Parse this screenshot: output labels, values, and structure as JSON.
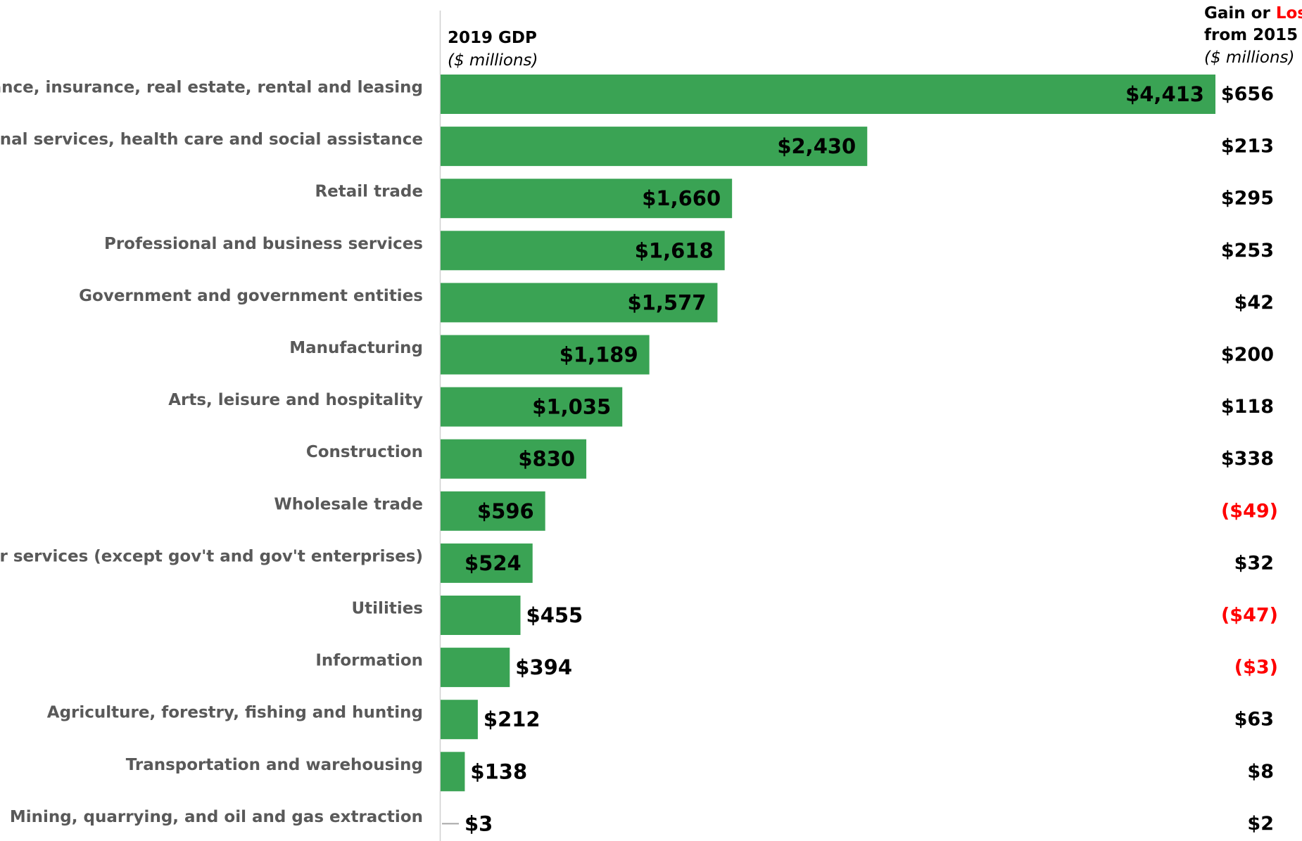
{
  "chart_data": {
    "type": "bar",
    "orientation": "horizontal",
    "bar_color": "#3aa354",
    "gain_color": "#000000",
    "loss_color": "#ff0000",
    "header_gdp": {
      "line1": "2019 GDP",
      "line2": "($ millions)"
    },
    "header_change": {
      "line1_a": "Gain or ",
      "line1_b": "Loss",
      "line2": "from 2015",
      "line3": "($ millions)"
    },
    "categories": [
      "Finance, insurance, real estate, rental and leasing",
      "Educational services, health care and social assistance",
      "Retail trade",
      "Professional and business services",
      "Government and government entities",
      "Manufacturing",
      "Arts, leisure and hospitality",
      "Construction",
      "Wholesale trade",
      "Other services (except gov't and gov't enterprises)",
      "Utilities",
      "Information",
      "Agriculture, forestry, fishing and hunting",
      "Transportation and warehousing",
      "Mining, quarrying, and oil and gas extraction"
    ],
    "series": [
      {
        "name": "2019 GDP",
        "values": [
          4413,
          2430,
          1660,
          1618,
          1577,
          1189,
          1035,
          830,
          596,
          524,
          455,
          394,
          212,
          138,
          3
        ]
      },
      {
        "name": "Gain or Loss from 2015",
        "values": [
          656,
          213,
          295,
          253,
          42,
          200,
          118,
          338,
          -49,
          32,
          -47,
          -3,
          63,
          8,
          2
        ]
      }
    ],
    "value_labels": [
      "$4,413",
      "$2,430",
      "$1,660",
      "$1,618",
      "$1,577",
      "$1,189",
      "$1,035",
      "$830",
      "$596",
      "$524",
      "$455",
      "$394",
      "$212",
      "$138",
      "$3"
    ],
    "change_labels": [
      "$656",
      "$213",
      "$295",
      "$253",
      "$42",
      "$200",
      "$118",
      "$338",
      "($49)",
      "$32",
      "($47)",
      "($3)",
      "$63",
      "$8",
      "$2"
    ],
    "xlim": [
      0,
      4413
    ],
    "grid": false
  }
}
